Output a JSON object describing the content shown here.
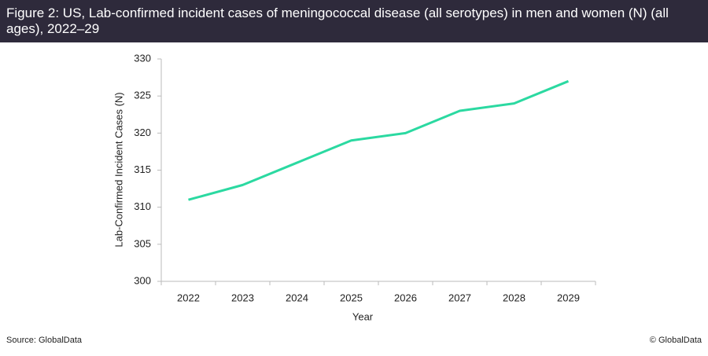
{
  "chart_data": {
    "type": "line",
    "title": "Figure 2: US, Lab-confirmed incident cases of meningococcal disease (all serotypes) in men and women (N) (all ages), 2022–29",
    "x_label": "Year",
    "y_label": "Lab-Confirmed Incident Cases (N)",
    "categories": [
      "2022",
      "2023",
      "2024",
      "2025",
      "2026",
      "2027",
      "2028",
      "2029"
    ],
    "values": [
      311,
      313,
      316,
      319,
      320,
      323,
      324,
      327
    ],
    "color": "#2bd9a1",
    "ylim": [
      300,
      330
    ],
    "yticks": [
      300,
      305,
      310,
      315,
      320,
      325,
      330
    ],
    "grid": false
  },
  "source": "Source: GlobalData",
  "copyright": "© GlobalData"
}
